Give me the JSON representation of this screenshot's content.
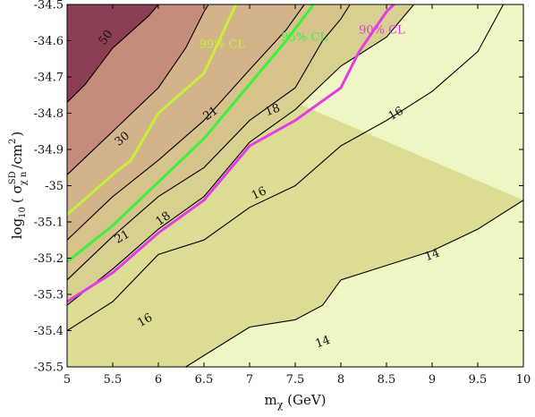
{
  "chart_data": {
    "type": "contour",
    "xlabel": "m",
    "xlabel_sub": "χ",
    "xlabel_unit": " (GeV)",
    "ylabel_pre": "log",
    "ylabel_sub10": "10",
    "ylabel_sigma": "( σ",
    "ylabel_sup": "SD",
    "ylabel_sub": "χ n",
    "ylabel_unit": "/cm",
    "ylabel_pow": "2",
    "ylabel_close": ")",
    "xlim": [
      5,
      10
    ],
    "ylim": [
      -35.5,
      -34.5
    ],
    "x_ticks": [
      5,
      5.5,
      6,
      6.5,
      7,
      7.5,
      8,
      8.5,
      9,
      9.5,
      10
    ],
    "x_tick_labels": [
      "5",
      "5.5",
      "6",
      "6.5",
      "7",
      "7.5",
      "8",
      "8.5",
      "9",
      "9.5",
      "10"
    ],
    "y_ticks": [
      -35.5,
      -35.4,
      -35.3,
      -35.2,
      -35.1,
      -35.0,
      -34.9,
      -34.8,
      -34.7,
      -34.6,
      -34.5
    ],
    "y_tick_labels": [
      "-35.5",
      "-35.4",
      "-35.3",
      "-35.2",
      "-35.1",
      "-35",
      "-34.9",
      "-34.8",
      "-34.7",
      "-34.6",
      "-34.5"
    ],
    "region_colors": {
      "lt14": "#eef6c4",
      "14to16": "#dcdc94",
      "16to18": "#d8d090",
      "18to21": "#d7c48c",
      "21to30": "#d3b38a",
      "30to50": "#c58c7c",
      "gt50": "#8c3e52"
    },
    "contours": [
      {
        "level": 14,
        "label": "14",
        "points": [
          [
            6.3,
            -35.5
          ],
          [
            7.0,
            -35.39
          ],
          [
            7.5,
            -35.37
          ],
          [
            7.8,
            -35.33
          ],
          [
            8.0,
            -35.26
          ],
          [
            8.5,
            -35.22
          ],
          [
            9.0,
            -35.18
          ],
          [
            9.5,
            -35.12
          ],
          [
            10.0,
            -35.04
          ]
        ]
      },
      {
        "level": 16,
        "label": "16",
        "points": [
          [
            5.0,
            -35.4
          ],
          [
            5.5,
            -35.32
          ],
          [
            6.0,
            -35.19
          ],
          [
            6.5,
            -35.15
          ],
          [
            7.0,
            -35.06
          ],
          [
            7.5,
            -35.0
          ],
          [
            8.0,
            -34.89
          ],
          [
            8.5,
            -34.82
          ],
          [
            9.0,
            -34.74
          ],
          [
            9.5,
            -34.63
          ],
          [
            9.78,
            -34.5
          ]
        ]
      },
      {
        "level": 16,
        "label": "16",
        "points": [
          [
            5.0,
            -35.33
          ],
          [
            5.5,
            -35.23
          ],
          [
            6.0,
            -35.12
          ],
          [
            6.5,
            -35.03
          ],
          [
            7.0,
            -34.88
          ],
          [
            7.5,
            -34.79
          ],
          [
            8.0,
            -34.67
          ],
          [
            8.5,
            -34.59
          ],
          [
            8.8,
            -34.5
          ]
        ]
      },
      {
        "level": 18,
        "label": "18",
        "points": [
          [
            5.0,
            -35.26
          ],
          [
            5.5,
            -35.14
          ],
          [
            6.0,
            -35.03
          ],
          [
            6.5,
            -34.95
          ],
          [
            7.0,
            -34.82
          ],
          [
            7.5,
            -34.73
          ],
          [
            7.8,
            -34.6
          ],
          [
            8.0,
            -34.54
          ],
          [
            8.1,
            -34.5
          ]
        ]
      },
      {
        "level": 21,
        "label": "21",
        "points": [
          [
            5.0,
            -35.15
          ],
          [
            5.5,
            -35.03
          ],
          [
            6.0,
            -34.93
          ],
          [
            6.5,
            -34.82
          ],
          [
            7.0,
            -34.68
          ],
          [
            7.4,
            -34.57
          ],
          [
            7.6,
            -34.5
          ]
        ]
      },
      {
        "level": 30,
        "label": "30",
        "points": [
          [
            5.0,
            -34.97
          ],
          [
            5.5,
            -34.85
          ],
          [
            6.0,
            -34.73
          ],
          [
            6.3,
            -34.62
          ],
          [
            6.5,
            -34.52
          ],
          [
            6.55,
            -34.5
          ]
        ]
      },
      {
        "level": 50,
        "label": "50",
        "points": [
          [
            5.0,
            -34.77
          ],
          [
            5.2,
            -34.72
          ],
          [
            5.5,
            -34.62
          ],
          [
            5.9,
            -34.53
          ],
          [
            6.0,
            -34.5
          ]
        ]
      }
    ],
    "contour_labels": [
      {
        "text": "50",
        "x": 5.42,
        "y": -34.59,
        "angle": -55
      },
      {
        "text": "30",
        "x": 5.6,
        "y": -34.87,
        "angle": -40
      },
      {
        "text": "21",
        "x": 5.6,
        "y": -35.14,
        "angle": -30
      },
      {
        "text": "21",
        "x": 6.57,
        "y": -34.8,
        "angle": -35
      },
      {
        "text": "18",
        "x": 6.05,
        "y": -35.09,
        "angle": -35
      },
      {
        "text": "18",
        "x": 7.25,
        "y": -34.79,
        "angle": -20
      },
      {
        "text": "16",
        "x": 5.85,
        "y": -35.37,
        "angle": -30
      },
      {
        "text": "16",
        "x": 7.1,
        "y": -35.02,
        "angle": -25
      },
      {
        "text": "16",
        "x": 8.6,
        "y": -34.8,
        "angle": -30
      },
      {
        "text": "14",
        "x": 7.8,
        "y": -35.43,
        "angle": -20
      },
      {
        "text": "14",
        "x": 9.0,
        "y": -35.19,
        "angle": -20
      }
    ],
    "series": [
      {
        "name": "99% CL",
        "color": "#c8f03a",
        "label_x": 6.7,
        "label_y": -34.62,
        "points": [
          [
            5.0,
            -35.08
          ],
          [
            5.5,
            -34.97
          ],
          [
            5.7,
            -34.93
          ],
          [
            6.0,
            -34.8
          ],
          [
            6.5,
            -34.69
          ],
          [
            6.85,
            -34.5
          ]
        ]
      },
      {
        "name": "95% CL",
        "color": "#3cf23c",
        "label_x": 7.6,
        "label_y": -34.6,
        "points": [
          [
            5.0,
            -35.21
          ],
          [
            5.5,
            -35.11
          ],
          [
            6.0,
            -34.99
          ],
          [
            6.5,
            -34.87
          ],
          [
            7.0,
            -34.72
          ],
          [
            7.4,
            -34.6
          ],
          [
            7.7,
            -34.5
          ]
        ]
      },
      {
        "name": "90% CL",
        "color": "#e43ce4",
        "label_x": 8.45,
        "label_y": -34.58,
        "points": [
          [
            5.0,
            -35.32
          ],
          [
            5.5,
            -35.24
          ],
          [
            6.0,
            -35.13
          ],
          [
            6.5,
            -35.04
          ],
          [
            7.0,
            -34.89
          ],
          [
            7.5,
            -34.82
          ],
          [
            8.0,
            -34.73
          ],
          [
            8.2,
            -34.63
          ],
          [
            8.5,
            -34.52
          ],
          [
            8.58,
            -34.5
          ]
        ]
      }
    ]
  }
}
